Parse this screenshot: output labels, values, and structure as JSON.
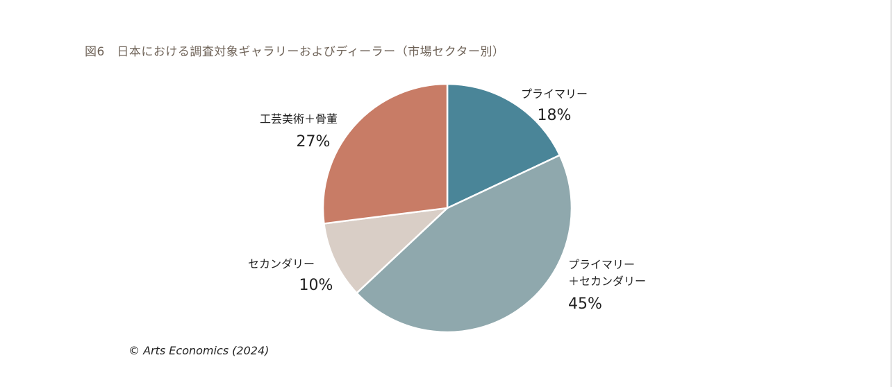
{
  "figure": {
    "title": "図6　日本における調査対象ギャラリーおよびディーラー（市場セクター別）",
    "credit": "© Arts Economics (2024)"
  },
  "chart_data": {
    "type": "pie",
    "title": "図6　日本における調査対象ギャラリーおよびディーラー（市場セクター別）",
    "slices": [
      {
        "label_lines": [
          "プライマリー"
        ],
        "value": 18,
        "value_label": "18%",
        "color": "#4a8598"
      },
      {
        "label_lines": [
          "プライマリー",
          "＋セカンダリー"
        ],
        "value": 45,
        "value_label": "45%",
        "color": "#8fa8ad"
      },
      {
        "label_lines": [
          "セカンダリー"
        ],
        "value": 10,
        "value_label": "10%",
        "color": "#d9cec6"
      },
      {
        "label_lines": [
          "工芸美術＋骨董"
        ],
        "value": 27,
        "value_label": "27%",
        "color": "#c87c66"
      }
    ],
    "start": "12 o'clock",
    "direction": "clockwise",
    "legend": "none (direct labels)"
  }
}
